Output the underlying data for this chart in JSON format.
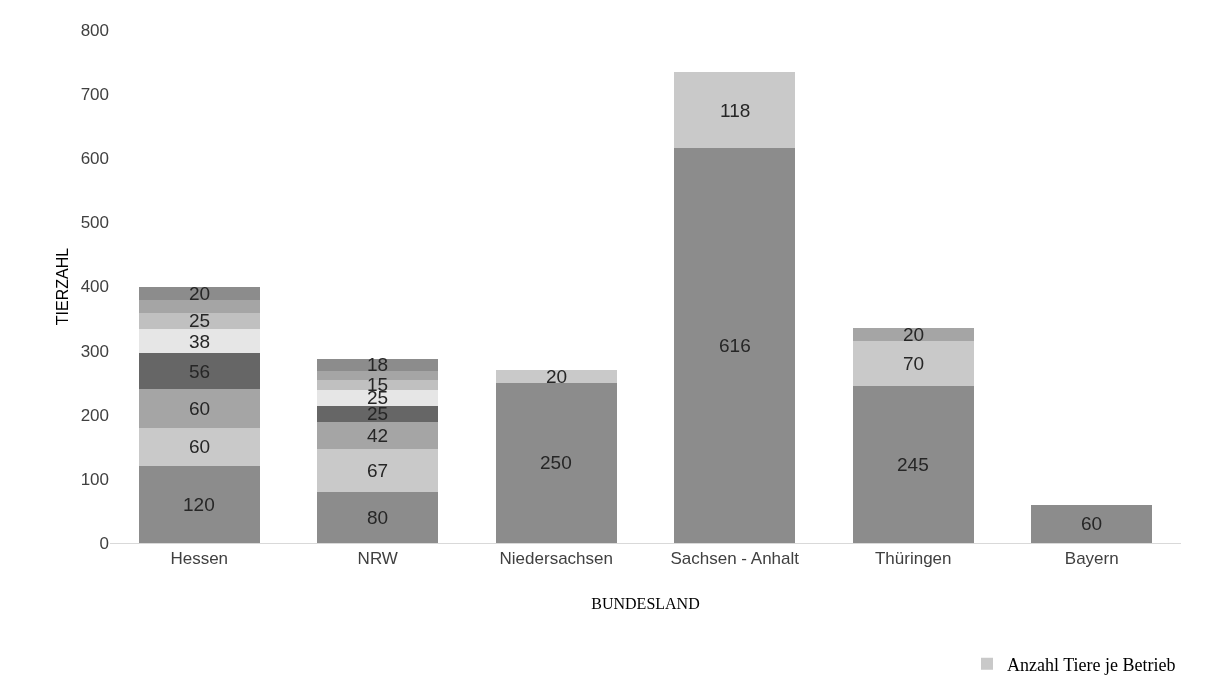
{
  "chart_data": {
    "type": "bar",
    "stacked": true,
    "xlabel": "BUNDESLAND",
    "ylabel": "TIERZAHL",
    "categories": [
      "Hessen",
      "NRW",
      "Niedersachsen",
      "Sachsen - Anhalt",
      "Thüringen",
      "Bayern"
    ],
    "ylim": [
      0,
      800
    ],
    "yticks": [
      0,
      100,
      200,
      300,
      400,
      500,
      600,
      700,
      800
    ],
    "grid": false,
    "legend": "bottom right",
    "series": [
      {
        "color": "#8c8c8c",
        "values": [
          120,
          80,
          250,
          616,
          245,
          60
        ],
        "value_labels": [
          "120",
          "80",
          "250",
          "616",
          "245",
          "60"
        ]
      },
      {
        "name": "Anzahl Tiere je Betrieb",
        "color": "#c9c9c9",
        "values": [
          60,
          67,
          20,
          118,
          70,
          null
        ],
        "value_labels": [
          "60",
          "67",
          "20",
          "118",
          "70",
          null
        ]
      },
      {
        "color": "#a5a5a5",
        "values": [
          60,
          42,
          null,
          null,
          20,
          null
        ],
        "value_labels": [
          "60",
          "42",
          null,
          null,
          "20",
          null
        ]
      },
      {
        "color": "#666666",
        "values": [
          56,
          25,
          null,
          null,
          null,
          null
        ],
        "value_labels": [
          "56",
          "25",
          null,
          null,
          null,
          null
        ]
      },
      {
        "color": "#e6e6e6",
        "values": [
          38,
          25,
          null,
          null,
          null,
          null
        ],
        "value_labels": [
          "38",
          "25",
          null,
          null,
          null,
          null
        ]
      },
      {
        "color": "#c0c0c0",
        "values": [
          25,
          15,
          null,
          null,
          null,
          null
        ],
        "value_labels": [
          "25",
          "15",
          null,
          null,
          null,
          null
        ]
      },
      {
        "color": "#a5a5a5",
        "values": [
          20,
          15,
          null,
          null,
          null,
          null
        ],
        "value_labels": [
          null,
          null,
          null,
          null,
          null,
          null
        ]
      },
      {
        "color": "#8c8c8c",
        "values": [
          20,
          18,
          null,
          null,
          null,
          null
        ],
        "value_labels": [
          "20",
          "18",
          null,
          null,
          null,
          null
        ]
      }
    ]
  }
}
